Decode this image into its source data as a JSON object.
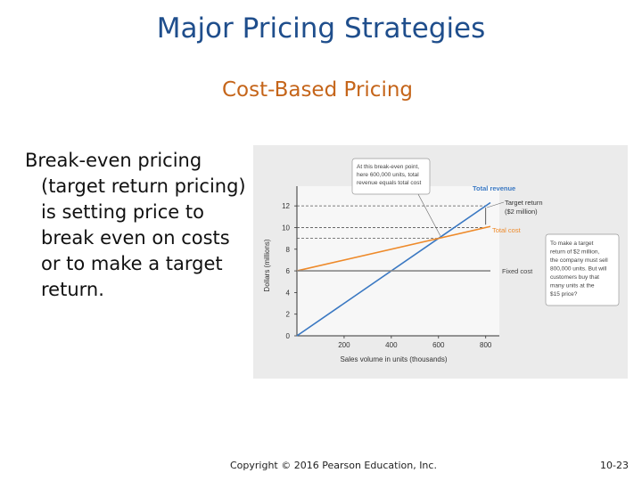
{
  "slide": {
    "title": "Major Pricing Strategies",
    "subtitle": "Cost-Based Pricing",
    "body_first": "Break-even pricing",
    "body_rest": "(target return pricing)  is setting price to break even on costs or to make a target return.",
    "footer": "Copyright © 2016 Pearson Education, Inc.",
    "slide_number": "10-23"
  },
  "colors": {
    "title": "#1f4e8c",
    "subtitle": "#c5651a",
    "revenue": "#3a78c2",
    "total_cost": "#ee8a2a",
    "fixed_cost": "#888888",
    "chart_bg": "#ebebeb"
  },
  "chart_data": {
    "type": "line",
    "xlabel": "Sales volume in units (thousands)",
    "ylabel": "Dollars (millions)",
    "x_ticks": [
      200,
      400,
      600,
      800
    ],
    "x_tick_labels": [
      "200",
      "400",
      "600",
      "800"
    ],
    "y_ticks": [
      0,
      2,
      4,
      6,
      8,
      10,
      12
    ],
    "y_tick_labels": [
      "0",
      "2",
      "4",
      "6",
      "8",
      "10",
      "12"
    ],
    "xlim": [
      0,
      820
    ],
    "ylim": [
      0,
      13
    ],
    "series": [
      {
        "name": "Total revenue",
        "color": "#3a78c2",
        "x": [
          0,
          820
        ],
        "y": [
          0,
          12.3
        ]
      },
      {
        "name": "Total cost",
        "color": "#ee8a2a",
        "x": [
          0,
          820
        ],
        "y": [
          6,
          10.1
        ]
      },
      {
        "name": "Fixed cost",
        "color": "#888888",
        "x": [
          0,
          820
        ],
        "y": [
          6,
          6
        ]
      }
    ],
    "reference_lines": [
      {
        "y": 12,
        "x_end": 800
      },
      {
        "y": 10,
        "x_end": 800
      },
      {
        "y": 9,
        "x_end": 600
      }
    ],
    "annotations": [
      {
        "lines": [
          "At this break-even point,",
          "here 600,000 units, total",
          "revenue equals total cost"
        ]
      },
      {
        "lines": [
          "Target return",
          "($2 million)"
        ]
      },
      {
        "lines": [
          "To make a target",
          "return of $2 million,",
          "the company must sell",
          "800,000 units. But will",
          "customers buy that",
          "many units at the",
          "$15 price?"
        ]
      }
    ],
    "grid": false
  }
}
